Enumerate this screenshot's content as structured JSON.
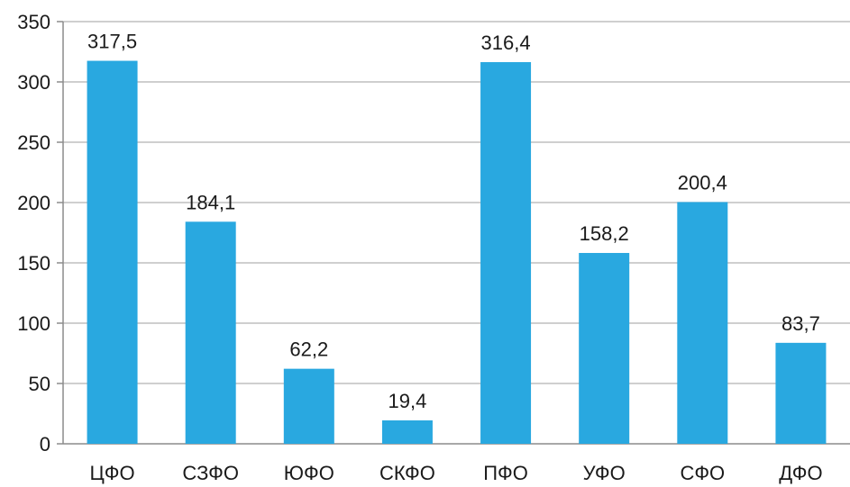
{
  "chart_data": {
    "type": "bar",
    "categories": [
      "ЦФО",
      "СЗФО",
      "ЮФО",
      "СКФО",
      "ПФО",
      "УФО",
      "СФО",
      "ДФО"
    ],
    "values": [
      317.5,
      184.1,
      62.2,
      19.4,
      316.4,
      158.2,
      200.4,
      83.7
    ],
    "data_labels": [
      "317,5",
      "184,1",
      "62,2",
      "19,4",
      "316,4",
      "158,2",
      "200,4",
      "83,7"
    ],
    "y_ticks": [
      0,
      50,
      100,
      150,
      200,
      250,
      300,
      350
    ],
    "ylim": [
      0,
      350
    ],
    "grid": true,
    "bar_color": "#29a8e0",
    "grid_color": "#bfbfbf",
    "axis_color": "#8c8c8c",
    "title": "",
    "xlabel": "",
    "ylabel": ""
  }
}
